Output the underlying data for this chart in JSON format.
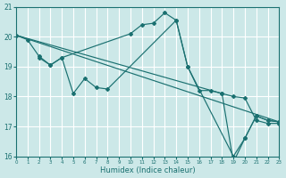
{
  "bg_color": "#cce8e8",
  "grid_color": "#ffffff",
  "line_color": "#1a7070",
  "xlabel": "Humidex (Indice chaleur)",
  "xlim": [
    0,
    23
  ],
  "ylim": [
    16,
    21
  ],
  "xticks": [
    0,
    1,
    2,
    3,
    4,
    5,
    6,
    7,
    8,
    9,
    10,
    11,
    12,
    13,
    14,
    15,
    16,
    17,
    18,
    19,
    20,
    21,
    22,
    23
  ],
  "yticks": [
    16,
    17,
    18,
    19,
    20,
    21
  ],
  "series1": {
    "x": [
      0,
      1,
      2,
      3,
      4,
      10,
      11,
      12,
      13,
      14,
      15,
      16,
      17,
      18,
      19,
      20,
      21,
      22,
      23
    ],
    "y": [
      20.05,
      19.9,
      19.35,
      19.05,
      19.3,
      20.1,
      20.4,
      20.45,
      20.8,
      20.55,
      19.0,
      18.2,
      18.2,
      18.1,
      18.0,
      17.95,
      17.2,
      17.1,
      17.1
    ],
    "has_markers": true
  },
  "series2": {
    "x": [
      2,
      3,
      4,
      5,
      6,
      7,
      8,
      14,
      15,
      19,
      20,
      21,
      22,
      23
    ],
    "y": [
      19.3,
      19.05,
      19.3,
      18.1,
      18.6,
      18.3,
      18.25,
      20.55,
      19.0,
      16.0,
      16.6,
      17.35,
      17.2,
      17.15
    ],
    "has_markers": true
  },
  "series3": {
    "x": [
      0,
      23
    ],
    "y": [
      20.05,
      17.15
    ],
    "has_markers": false
  },
  "series4": {
    "x": [
      0,
      18,
      19,
      20,
      21,
      22,
      23
    ],
    "y": [
      20.05,
      18.1,
      15.8,
      16.6,
      17.35,
      17.2,
      17.15
    ],
    "has_markers": true
  }
}
